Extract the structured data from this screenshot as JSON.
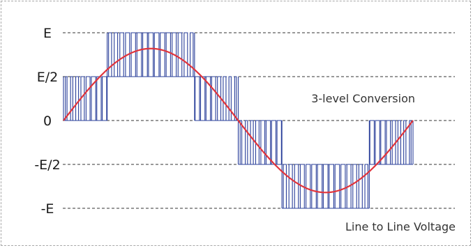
{
  "chart_data": {
    "type": "line",
    "title": "3-level Conversion",
    "subtitle": "Line to Line Voltage",
    "y_levels": [
      {
        "label": "E",
        "value": 1.0
      },
      {
        "label": "E/2",
        "value": 0.5
      },
      {
        "label": "0",
        "value": 0.0
      },
      {
        "label": "-E/2",
        "value": -0.5
      },
      {
        "label": "-E",
        "value": -1.0
      }
    ],
    "ylim": [
      -1.0,
      1.0
    ],
    "xlim": [
      0,
      360
    ],
    "grid": "dashed horizontal at each level",
    "series": [
      {
        "kind": "pwm-staircase",
        "color": "#2a3f9a",
        "x": [
          0,
          45,
          135,
          180,
          225,
          315,
          360
        ],
        "levels": [
          [
            0,
            0.5
          ],
          [
            0.5,
            1.0
          ],
          [
            0,
            0.5
          ],
          [
            -0.5,
            0
          ],
          [
            -1.0,
            -0.5
          ],
          [
            -0.5,
            0
          ]
        ]
      },
      {
        "kind": "sine",
        "color": "#e0343c",
        "amplitude": 0.82,
        "period": 360
      }
    ]
  }
}
